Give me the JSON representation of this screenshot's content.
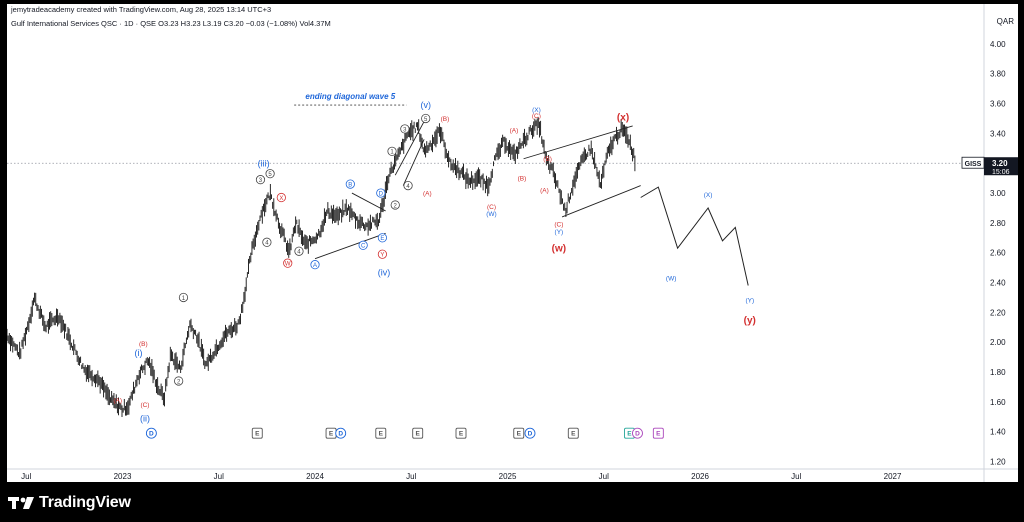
{
  "header": {
    "credit": "jemytradeacademy created with TradingView.com, Aug 28, 2025 13:14 UTC+3",
    "symbol_line": "Gulf International Services QSC · 1D · QSE  O3.23  H3.23  L3.19  C3.20  −0.03 (−1.08%)  Vol4.37M",
    "currency": "QAR"
  },
  "footer": {
    "brand": "TradingView"
  },
  "price_tag": {
    "ticker": "GISS",
    "price": "3.20",
    "countdown": "15:06"
  },
  "chart_data": {
    "type": "line",
    "x_unit": "months since Jan 2022",
    "y_unit": "QAR",
    "ylim": [
      1.15,
      4.12
    ],
    "xlim": [
      4.8,
      65.7
    ],
    "yticks": [
      1.2,
      1.4,
      1.6,
      1.8,
      2.0,
      2.2,
      2.4,
      2.6,
      2.8,
      3.0,
      3.2,
      3.4,
      3.6,
      3.8,
      4.0
    ],
    "ytick_labels": [
      "1.20",
      "1.40",
      "1.60",
      "1.80",
      "2.00",
      "2.20",
      "2.40",
      "2.60",
      "2.80",
      "3.00",
      "3.20",
      "3.40",
      "3.60",
      "3.80",
      "4.00"
    ],
    "xticks": [
      {
        "x": 6,
        "label": "Jul"
      },
      {
        "x": 12,
        "label": "2023"
      },
      {
        "x": 18,
        "label": "Jul"
      },
      {
        "x": 24,
        "label": "2024"
      },
      {
        "x": 30,
        "label": "Jul"
      },
      {
        "x": 36,
        "label": "2025"
      },
      {
        "x": 42,
        "label": "Jul"
      },
      {
        "x": 48,
        "label": "2026"
      },
      {
        "x": 54,
        "label": "Jul"
      },
      {
        "x": 60,
        "label": "2027"
      }
    ],
    "last_price": 3.2,
    "price_path": [
      [
        4.8,
        2.05
      ],
      [
        5.6,
        1.92
      ],
      [
        6.2,
        2.15
      ],
      [
        6.5,
        2.3
      ],
      [
        7.2,
        2.1
      ],
      [
        8.0,
        2.18
      ],
      [
        8.8,
        2.0
      ],
      [
        9.6,
        1.82
      ],
      [
        10.5,
        1.75
      ],
      [
        11.2,
        1.62
      ],
      [
        12.0,
        1.55
      ],
      [
        12.4,
        1.58
      ],
      [
        13.0,
        1.78
      ],
      [
        13.6,
        1.88
      ],
      [
        14.2,
        1.7
      ],
      [
        14.6,
        1.62
      ],
      [
        15.0,
        1.92
      ],
      [
        15.6,
        1.82
      ],
      [
        16.2,
        2.12
      ],
      [
        16.6,
        2.05
      ],
      [
        17.2,
        1.85
      ],
      [
        17.6,
        1.92
      ],
      [
        18.4,
        2.05
      ],
      [
        19.2,
        2.12
      ],
      [
        19.4,
        2.2
      ],
      [
        19.6,
        2.32
      ],
      [
        20.0,
        2.58
      ],
      [
        20.6,
        2.85
      ],
      [
        21.2,
        3.0
      ],
      [
        21.8,
        2.78
      ],
      [
        22.4,
        2.6
      ],
      [
        22.8,
        2.8
      ],
      [
        23.4,
        2.65
      ],
      [
        24.2,
        2.72
      ],
      [
        24.8,
        2.88
      ],
      [
        25.4,
        2.84
      ],
      [
        26.0,
        2.9
      ],
      [
        26.6,
        2.82
      ],
      [
        27.2,
        2.78
      ],
      [
        28.0,
        2.82
      ],
      [
        28.6,
        3.12
      ],
      [
        29.2,
        3.25
      ],
      [
        29.8,
        3.4
      ],
      [
        30.4,
        3.45
      ],
      [
        30.8,
        3.28
      ],
      [
        31.3,
        3.34
      ],
      [
        31.8,
        3.42
      ],
      [
        32.4,
        3.2
      ],
      [
        33.0,
        3.15
      ],
      [
        33.6,
        3.08
      ],
      [
        34.2,
        3.1
      ],
      [
        34.8,
        3.05
      ],
      [
        35.2,
        3.22
      ],
      [
        35.8,
        3.35
      ],
      [
        36.4,
        3.25
      ],
      [
        37.0,
        3.35
      ],
      [
        37.6,
        3.44
      ],
      [
        38.0,
        3.45
      ],
      [
        38.4,
        3.22
      ],
      [
        38.8,
        3.15
      ],
      [
        39.2,
        3.02
      ],
      [
        39.6,
        2.88
      ],
      [
        40.2,
        3.1
      ],
      [
        40.8,
        3.25
      ],
      [
        41.2,
        3.3
      ],
      [
        41.8,
        3.05
      ],
      [
        42.2,
        3.25
      ],
      [
        42.6,
        3.35
      ],
      [
        43.1,
        3.43
      ],
      [
        43.6,
        3.35
      ],
      [
        44.0,
        3.2
      ]
    ],
    "projection": [
      [
        44.3,
        2.97
      ],
      [
        45.4,
        3.04
      ],
      [
        46.6,
        2.63
      ],
      [
        48.5,
        2.9
      ],
      [
        49.4,
        2.68
      ],
      [
        50.2,
        2.77
      ],
      [
        51.0,
        2.38
      ]
    ],
    "annotation_title": "ending diagonal wave 5",
    "wave_labels": [
      {
        "x": 11.7,
        "y": 1.61,
        "text": "(A)",
        "color": "#d32f2f",
        "style": "plain"
      },
      {
        "x": 13.3,
        "y": 1.99,
        "text": "(B)",
        "color": "#d32f2f",
        "style": "plain"
      },
      {
        "x": 13.4,
        "y": 1.58,
        "text": "(C)",
        "color": "#d32f2f",
        "style": "plain"
      },
      {
        "x": 13.0,
        "y": 1.93,
        "text": "(i)",
        "color": "#1e66d9",
        "style": "plain"
      },
      {
        "x": 13.4,
        "y": 1.49,
        "text": "(ii)",
        "color": "#1e66d9",
        "style": "plain"
      },
      {
        "x": 15.8,
        "y": 2.3,
        "text": "1",
        "color": "#444",
        "style": "circle"
      },
      {
        "x": 15.5,
        "y": 1.74,
        "text": "2",
        "color": "#444",
        "style": "circle"
      },
      {
        "x": 20.8,
        "y": 3.2,
        "text": "(iii)",
        "color": "#1e66d9",
        "style": "plain"
      },
      {
        "x": 20.6,
        "y": 3.09,
        "text": "3",
        "color": "#444",
        "style": "circle"
      },
      {
        "x": 21.2,
        "y": 3.13,
        "text": "5",
        "color": "#444",
        "style": "circle"
      },
      {
        "x": 21.0,
        "y": 2.67,
        "text": "4",
        "color": "#444",
        "style": "circle"
      },
      {
        "x": 21.9,
        "y": 2.97,
        "text": "X",
        "color": "#d32f2f",
        "style": "circle"
      },
      {
        "x": 22.3,
        "y": 2.53,
        "text": "W",
        "color": "#d32f2f",
        "style": "circle"
      },
      {
        "x": 23.0,
        "y": 2.61,
        "text": "4",
        "color": "#444",
        "style": "circle"
      },
      {
        "x": 24.0,
        "y": 2.52,
        "text": "A",
        "color": "#1e66d9",
        "style": "circle"
      },
      {
        "x": 26.2,
        "y": 3.06,
        "text": "B",
        "color": "#1e66d9",
        "style": "circle"
      },
      {
        "x": 27.0,
        "y": 2.65,
        "text": "C",
        "color": "#1e66d9",
        "style": "circle"
      },
      {
        "x": 28.1,
        "y": 3.0,
        "text": "D",
        "color": "#1e66d9",
        "style": "circle"
      },
      {
        "x": 28.2,
        "y": 2.7,
        "text": "E",
        "color": "#1e66d9",
        "style": "circle"
      },
      {
        "x": 28.2,
        "y": 2.59,
        "text": "Y",
        "color": "#d32f2f",
        "style": "circle"
      },
      {
        "x": 28.3,
        "y": 2.47,
        "text": "(iv)",
        "color": "#1e66d9",
        "style": "plain"
      },
      {
        "x": 28.8,
        "y": 3.28,
        "text": "1",
        "color": "#444",
        "style": "circle"
      },
      {
        "x": 29.0,
        "y": 2.92,
        "text": "2",
        "color": "#444",
        "style": "circle"
      },
      {
        "x": 29.6,
        "y": 3.43,
        "text": "3",
        "color": "#444",
        "style": "circle"
      },
      {
        "x": 29.8,
        "y": 3.05,
        "text": "4",
        "color": "#444",
        "style": "circle"
      },
      {
        "x": 30.9,
        "y": 3.5,
        "text": "5",
        "color": "#444",
        "style": "circle"
      },
      {
        "x": 30.9,
        "y": 3.59,
        "text": "(v)",
        "color": "#1e66d9",
        "style": "plain"
      },
      {
        "x": 31.0,
        "y": 3.0,
        "text": "(A)",
        "color": "#d32f2f",
        "style": "plain"
      },
      {
        "x": 32.1,
        "y": 3.5,
        "text": "(B)",
        "color": "#d32f2f",
        "style": "plain"
      },
      {
        "x": 35.0,
        "y": 2.91,
        "text": "(C)",
        "color": "#d32f2f",
        "style": "plain"
      },
      {
        "x": 35.0,
        "y": 2.86,
        "text": "(W)",
        "color": "#1e66d9",
        "style": "plain"
      },
      {
        "x": 36.4,
        "y": 3.42,
        "text": "(A)",
        "color": "#d32f2f",
        "style": "plain"
      },
      {
        "x": 36.9,
        "y": 3.1,
        "text": "(B)",
        "color": "#d32f2f",
        "style": "plain"
      },
      {
        "x": 37.8,
        "y": 3.56,
        "text": "(X)",
        "color": "#1e66d9",
        "style": "plain"
      },
      {
        "x": 37.8,
        "y": 3.52,
        "text": "(C)",
        "color": "#d32f2f",
        "style": "plain"
      },
      {
        "x": 38.5,
        "y": 3.23,
        "text": "(B)",
        "color": "#d32f2f",
        "style": "plain"
      },
      {
        "x": 38.3,
        "y": 3.02,
        "text": "(A)",
        "color": "#d32f2f",
        "style": "plain"
      },
      {
        "x": 39.2,
        "y": 2.79,
        "text": "(C)",
        "color": "#d32f2f",
        "style": "plain"
      },
      {
        "x": 39.2,
        "y": 2.74,
        "text": "(Y)",
        "color": "#1e66d9",
        "style": "plain"
      },
      {
        "x": 39.2,
        "y": 2.63,
        "text": "(w)",
        "color": "#d32f2f",
        "style": "plain-lg"
      },
      {
        "x": 43.2,
        "y": 3.51,
        "text": "(x)",
        "color": "#d32f2f",
        "style": "plain-lg"
      },
      {
        "x": 48.5,
        "y": 2.99,
        "text": "(X)",
        "color": "#1e66d9",
        "style": "plain"
      },
      {
        "x": 46.2,
        "y": 2.43,
        "text": "(W)",
        "color": "#1e66d9",
        "style": "plain"
      },
      {
        "x": 51.1,
        "y": 2.28,
        "text": "(Y)",
        "color": "#1e66d9",
        "style": "plain"
      },
      {
        "x": 51.1,
        "y": 2.15,
        "text": "(y)",
        "color": "#d32f2f",
        "style": "plain-lg"
      }
    ],
    "trendlines": [
      {
        "p1": [
          29.0,
          3.12
        ],
        "p2": [
          30.8,
          3.48
        ]
      },
      {
        "p1": [
          29.5,
          3.05
        ],
        "p2": [
          30.8,
          3.36
        ]
      },
      {
        "p1": [
          24.0,
          2.56
        ],
        "p2": [
          28.4,
          2.73
        ]
      },
      {
        "p1": [
          26.3,
          3.0
        ],
        "p2": [
          28.4,
          2.88
        ]
      },
      {
        "p1": [
          37.0,
          3.23
        ],
        "p2": [
          43.8,
          3.45
        ]
      },
      {
        "p1": [
          39.4,
          2.84
        ],
        "p2": [
          44.3,
          3.05
        ]
      }
    ],
    "event_markers": [
      {
        "x": 13.8,
        "text": "D",
        "color": "#1e66d9",
        "style": "circle"
      },
      {
        "x": 20.4,
        "text": "E",
        "color": "#555",
        "style": "square"
      },
      {
        "x": 25.0,
        "text": "E",
        "color": "#555",
        "style": "square"
      },
      {
        "x": 25.6,
        "text": "D",
        "color": "#1e66d9",
        "style": "circle"
      },
      {
        "x": 28.1,
        "text": "E",
        "color": "#555",
        "style": "square"
      },
      {
        "x": 30.4,
        "text": "E",
        "color": "#555",
        "style": "square"
      },
      {
        "x": 33.1,
        "text": "E",
        "color": "#555",
        "style": "square"
      },
      {
        "x": 36.7,
        "text": "E",
        "color": "#555",
        "style": "square"
      },
      {
        "x": 37.4,
        "text": "D",
        "color": "#1e66d9",
        "style": "circle"
      },
      {
        "x": 40.1,
        "text": "E",
        "color": "#555",
        "style": "square"
      },
      {
        "x": 43.6,
        "text": "E",
        "color": "#26a69a",
        "style": "square"
      },
      {
        "x": 44.1,
        "text": "D",
        "color": "#ab47bc",
        "style": "circle"
      },
      {
        "x": 45.4,
        "text": "E",
        "color": "#ab47bc",
        "style": "square"
      }
    ]
  }
}
